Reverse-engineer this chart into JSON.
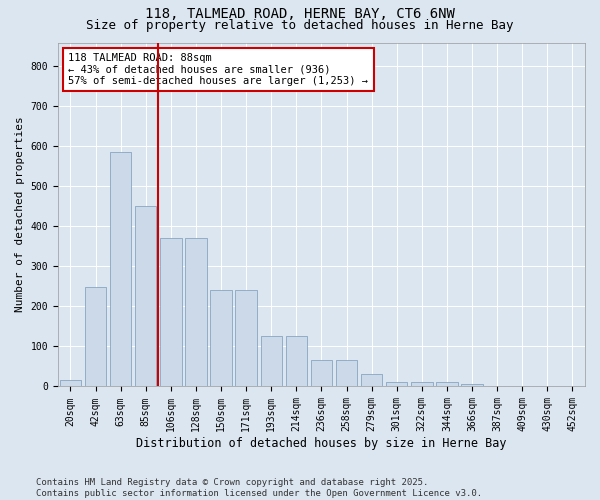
{
  "title1": "118, TALMEAD ROAD, HERNE BAY, CT6 6NW",
  "title2": "Size of property relative to detached houses in Herne Bay",
  "xlabel": "Distribution of detached houses by size in Herne Bay",
  "ylabel": "Number of detached properties",
  "categories": [
    "20sqm",
    "42sqm",
    "63sqm",
    "85sqm",
    "106sqm",
    "128sqm",
    "150sqm",
    "171sqm",
    "193sqm",
    "214sqm",
    "236sqm",
    "258sqm",
    "279sqm",
    "301sqm",
    "322sqm",
    "344sqm",
    "366sqm",
    "387sqm",
    "409sqm",
    "430sqm",
    "452sqm"
  ],
  "values": [
    15,
    248,
    585,
    450,
    370,
    370,
    240,
    240,
    125,
    125,
    65,
    65,
    30,
    10,
    10,
    10,
    5,
    2,
    1,
    1,
    0
  ],
  "bar_color": "#ccd9e8",
  "bar_edge_color": "#7799bb",
  "vline_color": "#cc0000",
  "vline_x_index": 3,
  "annotation_text": "118 TALMEAD ROAD: 88sqm\n← 43% of detached houses are smaller (936)\n57% of semi-detached houses are larger (1,253) →",
  "annotation_box_color": "#ffffff",
  "annotation_box_edge": "#cc0000",
  "ylim": [
    0,
    860
  ],
  "yticks": [
    0,
    100,
    200,
    300,
    400,
    500,
    600,
    700,
    800
  ],
  "background_color": "#dce6f0",
  "plot_bg_color": "#dce6f0",
  "footer_text": "Contains HM Land Registry data © Crown copyright and database right 2025.\nContains public sector information licensed under the Open Government Licence v3.0.",
  "title_fontsize": 10,
  "subtitle_fontsize": 9,
  "tick_fontsize": 7,
  "xlabel_fontsize": 8.5,
  "ylabel_fontsize": 8,
  "annotation_fontsize": 7.5,
  "footer_fontsize": 6.5
}
